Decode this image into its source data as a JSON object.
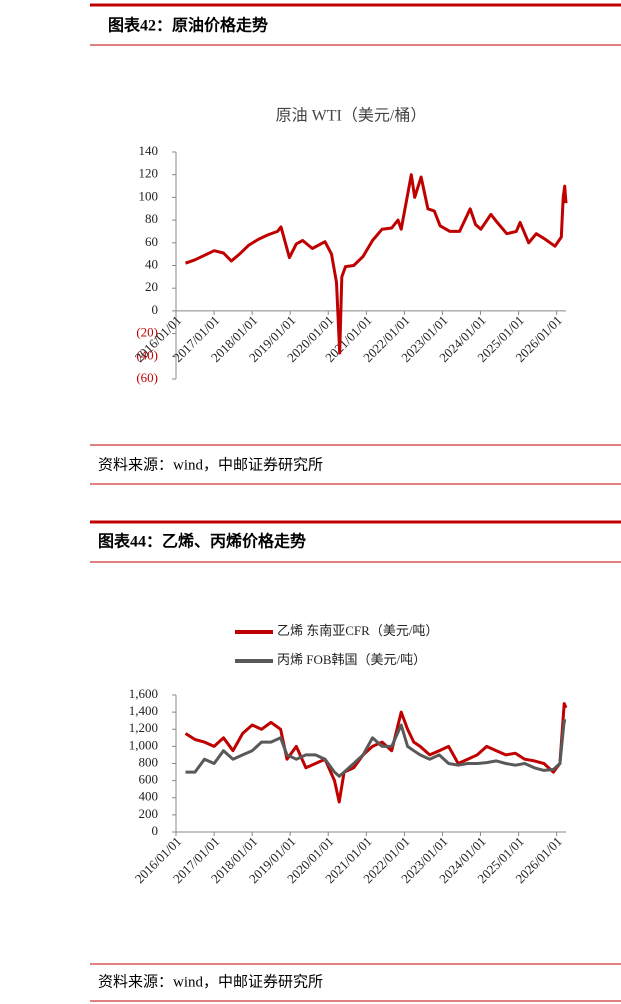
{
  "sections": [
    {
      "title": "图表42：原油价格走势",
      "source": "资料来源：wind，中邮证券研究所"
    },
    {
      "title": "图表44：乙烯、丙烯价格走势",
      "source": "资料来源：wind，中邮证券研究所"
    }
  ],
  "chart_data": [
    {
      "type": "line",
      "title": "原油 WTI（美元/桶）",
      "x": [
        "2016/04/01",
        "2016/07/01",
        "2016/10/01",
        "2017/01/01",
        "2017/04/01",
        "2017/06/15",
        "2017/09/01",
        "2017/12/01",
        "2018/03/01",
        "2018/06/01",
        "2018/09/01",
        "2018/10/05",
        "2018/12/24",
        "2019/03/01",
        "2019/05/01",
        "2019/08/01",
        "2019/12/01",
        "2020/02/01",
        "2020/03/20",
        "2020/04/20",
        "2020/05/10",
        "2020/06/15",
        "2020/09/01",
        "2020/12/01",
        "2021/03/01",
        "2021/06/01",
        "2021/09/01",
        "2021/11/01",
        "2021/12/01",
        "2022/03/08",
        "2022/04/10",
        "2022/06/10",
        "2022/08/15",
        "2022/10/15",
        "2022/12/10",
        "2023/03/15",
        "2023/06/15",
        "2023/09/25",
        "2023/11/15",
        "2024/01/05",
        "2024/04/10",
        "2024/06/10",
        "2024/09/10",
        "2024/12/10",
        "2025/01/15",
        "2025/04/08",
        "2025/06/20",
        "2025/09/15",
        "2025/12/15",
        "2026/02/15",
        "2026/03/05",
        "2026/03/20",
        "2026/04/01"
      ],
      "series": [
        {
          "name": "原油 WTI",
          "color": "#c00000",
          "values": [
            42,
            45,
            49,
            53,
            51,
            44,
            50,
            58,
            63,
            67,
            70,
            74,
            47,
            59,
            62,
            55,
            61,
            50,
            25,
            -37,
            30,
            39,
            40,
            48,
            62,
            72,
            73,
            80,
            72,
            120,
            100,
            118,
            90,
            88,
            75,
            70,
            70,
            90,
            76,
            72,
            85,
            78,
            68,
            70,
            78,
            60,
            68,
            63,
            57,
            65,
            100,
            110,
            95
          ]
        }
      ],
      "xlim": [
        "2016/01/01",
        "2026/04/01"
      ],
      "xticks": [
        "2016/01/01",
        "2017/01/01",
        "2018/01/01",
        "2019/01/01",
        "2020/01/01",
        "2021/01/01",
        "2022/01/01",
        "2023/01/01",
        "2024/01/01",
        "2025/01/01",
        "2026/01/01"
      ],
      "ylim": [
        -60,
        140
      ],
      "yticks": [
        140,
        120,
        100,
        80,
        60,
        40,
        20,
        0,
        {
          "value": -20,
          "label": "(20)"
        },
        {
          "value": -40,
          "label": "(40)"
        },
        {
          "value": -60,
          "label": "(60)"
        }
      ]
    },
    {
      "type": "line",
      "legend": "top",
      "x": [
        "2016/04/01",
        "2016/07/01",
        "2016/10/01",
        "2017/01/01",
        "2017/04/01",
        "2017/07/01",
        "2017/10/01",
        "2018/01/01",
        "2018/04/01",
        "2018/07/01",
        "2018/10/01",
        "2018/12/01",
        "2019/03/01",
        "2019/06/01",
        "2019/09/01",
        "2019/12/01",
        "2020/03/01",
        "2020/04/15",
        "2020/06/01",
        "2020/09/01",
        "2020/12/01",
        "2021/03/01",
        "2021/06/01",
        "2021/09/01",
        "2021/12/01",
        "2022/02/01",
        "2022/04/01",
        "2022/06/01",
        "2022/09/01",
        "2022/12/01",
        "2023/03/01",
        "2023/06/01",
        "2023/09/01",
        "2023/12/01",
        "2024/03/01",
        "2024/06/01",
        "2024/09/01",
        "2024/12/01",
        "2025/03/01",
        "2025/06/01",
        "2025/09/01",
        "2025/12/01",
        "2026/02/01",
        "2026/03/15",
        "2026/04/01"
      ],
      "series": [
        {
          "name": "乙烯 东南亚CFR（美元/吨）",
          "color": "#c00000",
          "values": [
            1150,
            1080,
            1050,
            1000,
            1100,
            950,
            1150,
            1250,
            1200,
            1280,
            1200,
            850,
            1000,
            750,
            800,
            850,
            600,
            350,
            700,
            750,
            900,
            1000,
            1050,
            950,
            1400,
            1200,
            1050,
            1000,
            900,
            950,
            1000,
            800,
            850,
            900,
            1000,
            950,
            900,
            920,
            850,
            830,
            800,
            700,
            800,
            1500,
            1450
          ]
        },
        {
          "name": "丙烯 FOB韩国（美元/吨）",
          "color": "#595959",
          "values": [
            700,
            700,
            850,
            800,
            950,
            850,
            900,
            950,
            1050,
            1050,
            1100,
            900,
            850,
            900,
            900,
            850,
            700,
            650,
            700,
            800,
            900,
            1100,
            1000,
            1000,
            1250,
            1000,
            950,
            900,
            850,
            900,
            800,
            780,
            800,
            800,
            810,
            830,
            800,
            780,
            800,
            750,
            720,
            730,
            800,
            1300,
            1300
          ]
        }
      ],
      "xlim": [
        "2016/01/01",
        "2026/04/01"
      ],
      "xticks": [
        "2016/01/01",
        "2017/01/01",
        "2018/01/01",
        "2019/01/01",
        "2020/01/01",
        "2021/01/01",
        "2022/01/01",
        "2023/01/01",
        "2024/01/01",
        "2025/01/01",
        "2026/01/01"
      ],
      "ylim": [
        0,
        1600
      ],
      "yticks": [
        {
          "value": 1600,
          "label": "1,600"
        },
        {
          "value": 1400,
          "label": "1,400"
        },
        {
          "value": 1200,
          "label": "1,200"
        },
        {
          "value": 1000,
          "label": "1,000"
        },
        800,
        600,
        400,
        200,
        0
      ]
    }
  ]
}
